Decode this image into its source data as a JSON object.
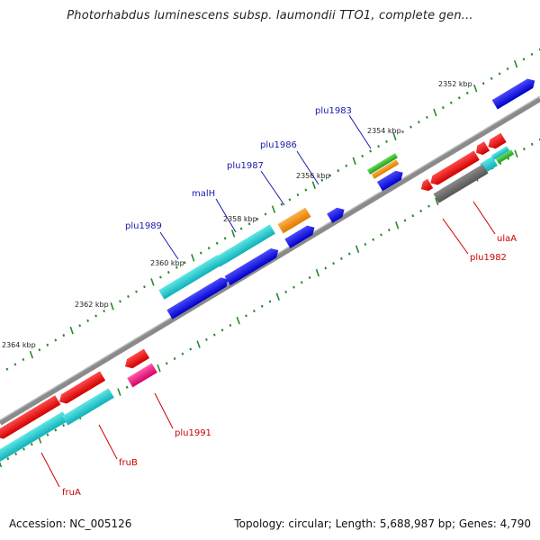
{
  "title": "Photorhabdus luminescens subsp. laumondii TTO1, complete gen...",
  "footer": {
    "accession": "Accession: NC_005126",
    "summary": "Topology: circular; Length: 5,688,987 bp; Genes: 4,790"
  },
  "colors": {
    "backbone": "#888888",
    "tick": "#2a8a2a",
    "label_blue": "#1a1aaa",
    "label_red": "#cc0000",
    "bp_label": "#222222"
  },
  "bp_labels": [
    "2352 kbp",
    "2354 kbp",
    "2356 kbp",
    "2358 kbp",
    "2360 kbp",
    "2362 kbp",
    "2364 kbp"
  ],
  "gene_labels": [
    {
      "name": "plu1983",
      "color": "blue"
    },
    {
      "name": "plu1986",
      "color": "blue"
    },
    {
      "name": "plu1987",
      "color": "blue"
    },
    {
      "name": "malH",
      "color": "blue"
    },
    {
      "name": "plu1989",
      "color": "blue"
    },
    {
      "name": "ulaA",
      "color": "red"
    },
    {
      "name": "plu1982",
      "color": "red"
    },
    {
      "name": "plu1991",
      "color": "red"
    },
    {
      "name": "fruB",
      "color": "red"
    },
    {
      "name": "fruA",
      "color": "red"
    }
  ]
}
